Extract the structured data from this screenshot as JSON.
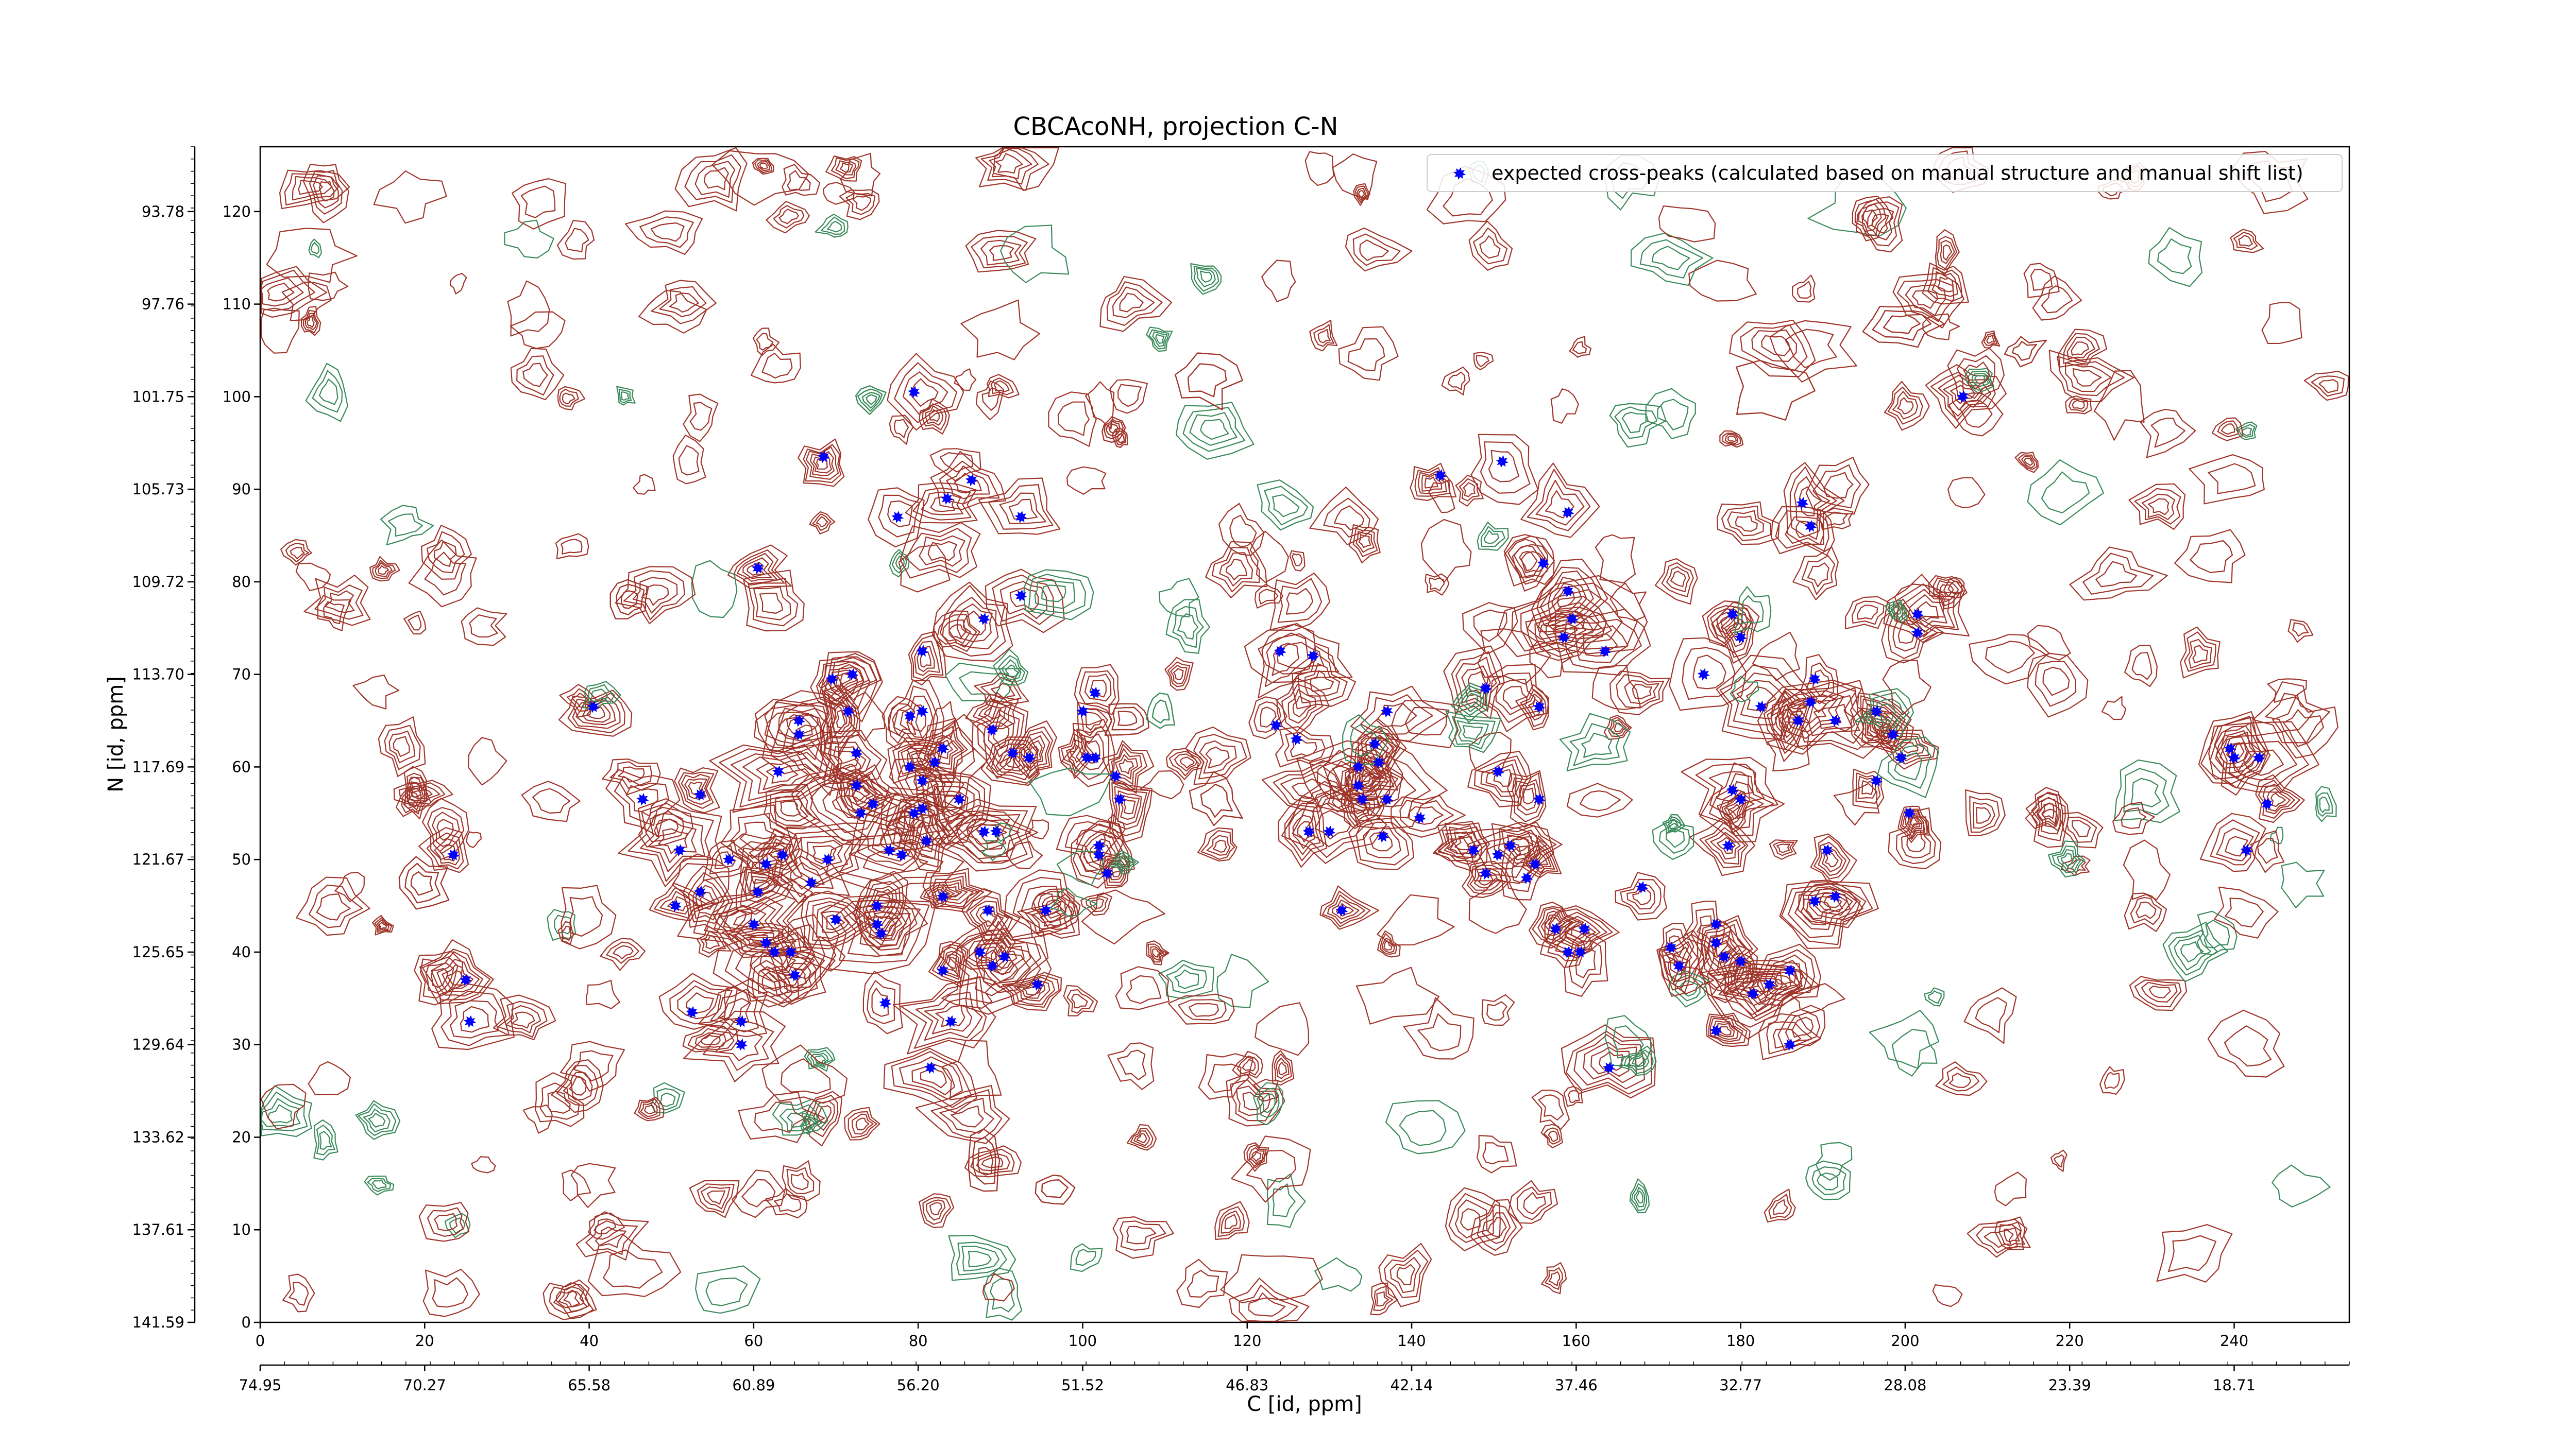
{
  "chart_data": {
    "type": "scatter",
    "title": "CBCAcoNH, projection C-N",
    "xlabel": "C [id, ppm]",
    "ylabel": "N [id, ppm]",
    "xlim": [
      0,
      254
    ],
    "ylim": [
      0,
      127
    ],
    "x_ticks": [
      "0",
      "20",
      "40",
      "60",
      "80",
      "100",
      "120",
      "140",
      "160",
      "180",
      "200",
      "220",
      "240"
    ],
    "y_ticks": [
      "0",
      "10",
      "20",
      "30",
      "40",
      "50",
      "60",
      "70",
      "80",
      "90",
      "100",
      "110",
      "120"
    ],
    "x_ppm_ticks": [
      "74.95",
      "70.27",
      "65.58",
      "60.89",
      "56.20",
      "51.52",
      "46.83",
      "42.14",
      "37.46",
      "32.77",
      "28.08",
      "23.39",
      "18.71"
    ],
    "y_ppm_ticks": [
      "141.59",
      "137.61",
      "133.62",
      "129.64",
      "125.65",
      "121.67",
      "117.69",
      "113.70",
      "109.72",
      "105.73",
      "101.75",
      "97.76",
      "93.78"
    ],
    "legend": {
      "label": "expected cross-peaks (calculated based on manual structure and manual shift list)",
      "placement": "top-right"
    },
    "colors": {
      "peaks": "#0000ff",
      "contour_positive": "#a0352a",
      "contour_negative": "#3a8a5a"
    },
    "series": [
      {
        "name": "expected cross-peaks (calculated based on manual structure and manual shift list)",
        "points": [
          [
            79.5,
            100.5
          ],
          [
            68.5,
            93.5
          ],
          [
            83.5,
            89.0
          ],
          [
            77.5,
            87.0
          ],
          [
            86.5,
            91.0
          ],
          [
            92.5,
            87.0
          ],
          [
            60.5,
            81.5
          ],
          [
            92.5,
            78.5
          ],
          [
            88.0,
            76.0
          ],
          [
            80.5,
            72.5
          ],
          [
            69.5,
            69.5
          ],
          [
            72.0,
            70.0
          ],
          [
            40.5,
            66.5
          ],
          [
            71.5,
            66.0
          ],
          [
            79.0,
            65.5
          ],
          [
            80.5,
            66.0
          ],
          [
            65.5,
            65.0
          ],
          [
            65.5,
            63.5
          ],
          [
            72.5,
            61.5
          ],
          [
            79.0,
            60.0
          ],
          [
            83.0,
            62.0
          ],
          [
            89.0,
            64.0
          ],
          [
            91.5,
            61.5
          ],
          [
            93.5,
            61.0
          ],
          [
            100.5,
            61.0
          ],
          [
            63.0,
            59.5
          ],
          [
            72.5,
            58.0
          ],
          [
            80.5,
            58.5
          ],
          [
            82.0,
            60.5
          ],
          [
            46.5,
            56.5
          ],
          [
            53.5,
            57.0
          ],
          [
            85.0,
            56.5
          ],
          [
            79.5,
            55.0
          ],
          [
            80.5,
            55.5
          ],
          [
            88.0,
            53.0
          ],
          [
            89.5,
            53.0
          ],
          [
            76.5,
            51.0
          ],
          [
            78.0,
            50.5
          ],
          [
            81.0,
            52.0
          ],
          [
            69.0,
            50.0
          ],
          [
            63.5,
            50.5
          ],
          [
            57.0,
            50.0
          ],
          [
            61.5,
            49.5
          ],
          [
            51.0,
            51.0
          ],
          [
            102.0,
            51.5
          ],
          [
            102.0,
            50.5
          ],
          [
            103.0,
            48.5
          ],
          [
            23.5,
            50.5
          ],
          [
            73.0,
            55.0
          ],
          [
            74.5,
            56.0
          ],
          [
            67.0,
            47.5
          ],
          [
            60.5,
            46.5
          ],
          [
            53.5,
            46.5
          ],
          [
            50.5,
            45.0
          ],
          [
            60.0,
            43.0
          ],
          [
            61.5,
            41.0
          ],
          [
            62.5,
            40.0
          ],
          [
            64.5,
            40.0
          ],
          [
            65.0,
            37.5
          ],
          [
            70.0,
            43.5
          ],
          [
            75.0,
            43.0
          ],
          [
            75.5,
            42.0
          ],
          [
            75.0,
            45.0
          ],
          [
            83.0,
            46.0
          ],
          [
            88.5,
            44.5
          ],
          [
            95.5,
            44.5
          ],
          [
            87.5,
            40.0
          ],
          [
            89.0,
            38.5
          ],
          [
            90.5,
            39.5
          ],
          [
            83.0,
            38.0
          ],
          [
            94.5,
            36.5
          ],
          [
            76.0,
            34.5
          ],
          [
            52.5,
            33.5
          ],
          [
            58.5,
            32.5
          ],
          [
            58.5,
            30.0
          ],
          [
            84.0,
            32.5
          ],
          [
            81.5,
            27.5
          ],
          [
            25.0,
            37.0
          ],
          [
            25.5,
            32.5
          ],
          [
            104.0,
            59.0
          ],
          [
            104.5,
            56.5
          ],
          [
            101.5,
            61.0
          ],
          [
            100.0,
            66.0
          ],
          [
            101.5,
            68.0
          ],
          [
            124.0,
            72.5
          ],
          [
            128.0,
            72.0
          ],
          [
            123.5,
            64.5
          ],
          [
            126.0,
            63.0
          ],
          [
            137.0,
            66.0
          ],
          [
            135.5,
            62.5
          ],
          [
            133.5,
            58.0
          ],
          [
            133.5,
            60.0
          ],
          [
            134.0,
            56.5
          ],
          [
            136.0,
            60.5
          ],
          [
            137.0,
            56.5
          ],
          [
            130.0,
            53.0
          ],
          [
            127.5,
            53.0
          ],
          [
            131.5,
            44.5
          ],
          [
            136.5,
            52.5
          ],
          [
            141.0,
            54.5
          ],
          [
            143.5,
            91.5
          ],
          [
            151.0,
            93.0
          ],
          [
            159.0,
            87.5
          ],
          [
            156.0,
            82.0
          ],
          [
            159.0,
            79.0
          ],
          [
            159.5,
            76.0
          ],
          [
            163.5,
            72.5
          ],
          [
            158.5,
            74.0
          ],
          [
            149.0,
            68.5
          ],
          [
            155.5,
            66.5
          ],
          [
            150.5,
            59.5
          ],
          [
            155.5,
            56.5
          ],
          [
            147.5,
            51.0
          ],
          [
            152.0,
            51.5
          ],
          [
            150.5,
            50.5
          ],
          [
            155.0,
            49.5
          ],
          [
            149.0,
            48.5
          ],
          [
            154.0,
            48.0
          ],
          [
            168.0,
            47.0
          ],
          [
            157.5,
            42.5
          ],
          [
            161.0,
            42.5
          ],
          [
            159.0,
            40.0
          ],
          [
            160.5,
            40.0
          ],
          [
            164.0,
            27.5
          ],
          [
            171.5,
            40.5
          ],
          [
            177.0,
            43.0
          ],
          [
            177.0,
            41.0
          ],
          [
            178.0,
            39.5
          ],
          [
            180.0,
            39.0
          ],
          [
            172.5,
            38.5
          ],
          [
            186.0,
            38.0
          ],
          [
            183.5,
            36.5
          ],
          [
            181.5,
            35.5
          ],
          [
            177.0,
            31.5
          ],
          [
            186.0,
            30.0
          ],
          [
            175.5,
            70.0
          ],
          [
            179.0,
            76.5
          ],
          [
            180.0,
            74.0
          ],
          [
            182.5,
            66.5
          ],
          [
            187.5,
            88.5
          ],
          [
            188.5,
            86.0
          ],
          [
            189.0,
            69.5
          ],
          [
            188.5,
            67.0
          ],
          [
            187.0,
            65.0
          ],
          [
            191.5,
            65.0
          ],
          [
            196.5,
            66.0
          ],
          [
            198.5,
            63.5
          ],
          [
            199.5,
            61.0
          ],
          [
            201.5,
            74.5
          ],
          [
            201.5,
            76.5
          ],
          [
            207.0,
            100.0
          ],
          [
            196.5,
            58.5
          ],
          [
            200.5,
            55.0
          ],
          [
            190.5,
            51.0
          ],
          [
            179.0,
            57.5
          ],
          [
            180.0,
            56.5
          ],
          [
            178.5,
            51.5
          ],
          [
            191.5,
            46.0
          ],
          [
            189.0,
            45.5
          ],
          [
            239.5,
            62.0
          ],
          [
            240.0,
            61.0
          ],
          [
            243.0,
            61.0
          ],
          [
            244.0,
            56.0
          ],
          [
            241.5,
            51.0
          ]
        ]
      }
    ]
  }
}
